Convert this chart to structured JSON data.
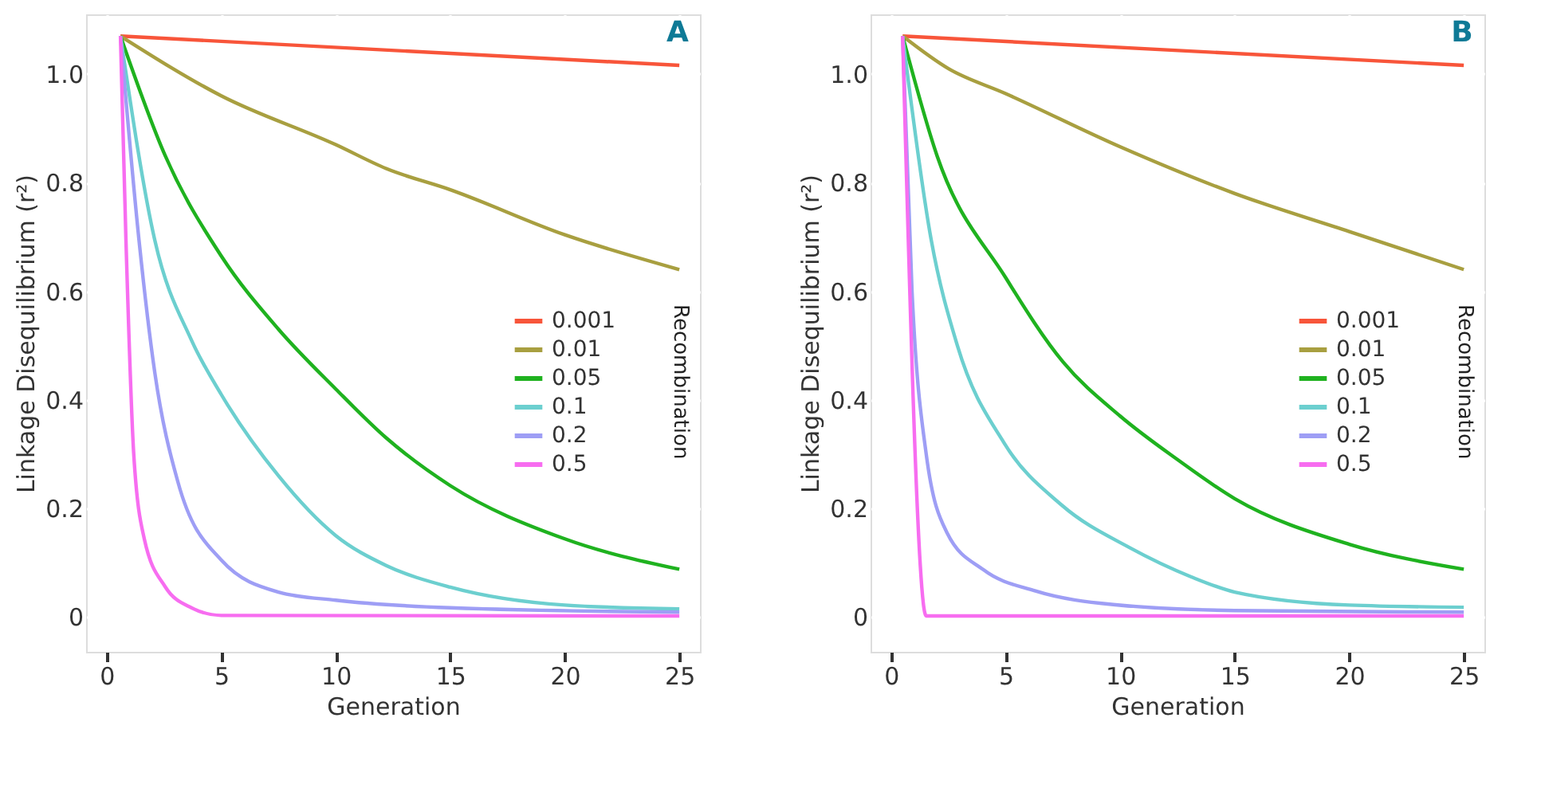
{
  "chart_data": [
    {
      "type": "line",
      "xlabel": "Generation",
      "ylabel": "Linkage Disequilibrium (r²)",
      "legend_title": "Recombination",
      "annotations": [
        "A"
      ],
      "xlim": [
        -0.9,
        25.9
      ],
      "ylim": [
        -0.064,
        1.11
      ],
      "xticks": [
        0,
        5,
        10,
        15,
        20,
        25
      ],
      "yticks": [
        0,
        0.2,
        0.4,
        0.6,
        0.8,
        {
          "value": 1.0,
          "label": "1.0"
        }
      ],
      "grid": true,
      "legend": "right",
      "series": [
        {
          "name": "0.001",
          "color": "#f8553a",
          "x": [
            0.6,
            25
          ],
          "values": [
            1.07,
            1.016
          ]
        },
        {
          "name": "0.01",
          "color": "#a89f40",
          "x": [
            0.6,
            5,
            10,
            12.2,
            15,
            20,
            25
          ],
          "values": [
            1.07,
            0.96,
            0.87,
            0.826,
            0.787,
            0.704,
            0.64
          ]
        },
        {
          "name": "0.05",
          "color": "#1fb21f",
          "x": [
            0.6,
            2.55,
            5,
            7.5,
            10,
            12.2,
            15,
            20,
            25
          ],
          "values": [
            1.07,
            0.85,
            0.665,
            0.53,
            0.42,
            0.33,
            0.242,
            0.144,
            0.088
          ]
        },
        {
          "name": "0.1",
          "color": "#6ccfcf",
          "x": [
            0.6,
            2.1,
            3.7,
            5,
            7.5,
            10,
            12.2,
            15,
            20,
            25
          ],
          "values": [
            1.07,
            0.694,
            0.51,
            0.41,
            0.26,
            0.15,
            0.095,
            0.055,
            0.022,
            0.015
          ]
        },
        {
          "name": "0.2",
          "color": "#9e9ef5",
          "x": [
            0.6,
            1.41,
            2.1,
            3.1,
            5,
            7.5,
            10,
            15,
            25
          ],
          "values": [
            1.07,
            0.694,
            0.45,
            0.25,
            0.105,
            0.046,
            0.031,
            0.017,
            0.009
          ]
        },
        {
          "name": "0.5",
          "color": "#f76df0",
          "x": [
            0.6,
            0.84,
            1.18,
            1.64,
            2.55,
            3.7,
            5,
            25
          ],
          "values": [
            1.07,
            0.694,
            0.3,
            0.144,
            0.056,
            0.017,
            0.003,
            0.002
          ]
        }
      ]
    },
    {
      "type": "line",
      "xlabel": "Generation",
      "ylabel": "Linkage Disequilibrium (r²)",
      "legend_title": "Recombination",
      "annotations": [
        "B"
      ],
      "xlim": [
        -0.9,
        25.9
      ],
      "ylim": [
        -0.064,
        1.11
      ],
      "xticks": [
        0,
        5,
        10,
        15,
        20,
        25
      ],
      "yticks": [
        0,
        0.2,
        0.4,
        0.6,
        0.8,
        {
          "value": 1.0,
          "label": "1.0"
        }
      ],
      "grid": true,
      "legend": "right",
      "series": [
        {
          "name": "0.001",
          "color": "#f8553a",
          "x": [
            0.5,
            25
          ],
          "values": [
            1.07,
            1.016
          ]
        },
        {
          "name": "0.01",
          "color": "#a89f40",
          "x": [
            0.5,
            2.5,
            5,
            10,
            15,
            20,
            25
          ],
          "values": [
            1.07,
            1.01,
            0.964,
            0.866,
            0.78,
            0.71,
            0.64
          ]
        },
        {
          "name": "0.05",
          "color": "#1fb21f",
          "x": [
            0.5,
            2,
            5,
            7.5,
            10,
            12.5,
            15,
            20,
            25
          ],
          "values": [
            1.07,
            0.85,
            0.625,
            0.47,
            0.37,
            0.29,
            0.218,
            0.134,
            0.088
          ]
        },
        {
          "name": "0.1",
          "color": "#6ccfcf",
          "x": [
            0.5,
            1.75,
            2.89,
            4.94,
            7.45,
            10.4,
            13.1,
            15,
            20,
            25
          ],
          "values": [
            1.07,
            0.694,
            0.5,
            0.32,
            0.206,
            0.128,
            0.074,
            0.046,
            0.022,
            0.018
          ]
        },
        {
          "name": "0.2",
          "color": "#9e9ef5",
          "x": [
            0.5,
            0.91,
            1.53,
            2.44,
            4.03,
            6.3,
            9.7,
            15,
            25
          ],
          "values": [
            1.07,
            0.6,
            0.3,
            0.155,
            0.087,
            0.048,
            0.023,
            0.012,
            0.009
          ]
        },
        {
          "name": "0.5",
          "color": "#f76df0",
          "x": [
            0.5,
            1.53,
            25
          ],
          "values": [
            1.07,
            0.002,
            0.002
          ]
        }
      ]
    }
  ]
}
